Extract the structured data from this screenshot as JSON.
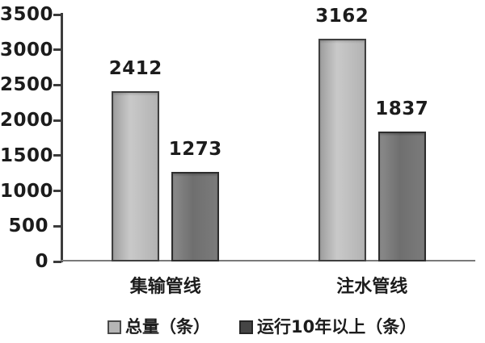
{
  "chart_data": {
    "type": "bar",
    "title": "",
    "xlabel": "",
    "ylabel": "",
    "categories": [
      "集输管线",
      "注水管线"
    ],
    "series": [
      {
        "name": "总量（条）",
        "values": [
          2412,
          3162
        ],
        "color": "#b5b5b5",
        "border_color": "#3f3f3f"
      },
      {
        "name": "运行10年以上（条）",
        "values": [
          1273,
          1837
        ],
        "color": "#757575",
        "border_color": "#2d2d2d"
      }
    ],
    "ylim": [
      0,
      3500
    ],
    "yticks": [
      0,
      500,
      1000,
      1500,
      2000,
      2500,
      3000,
      3500
    ],
    "grid": false,
    "legend_position": "bottom",
    "show_value_labels": true
  },
  "colors": {
    "background": "#ffffff",
    "text": "#1c1c1c",
    "axis": "#3c3c3c",
    "baseline": "#7a7a7a"
  }
}
